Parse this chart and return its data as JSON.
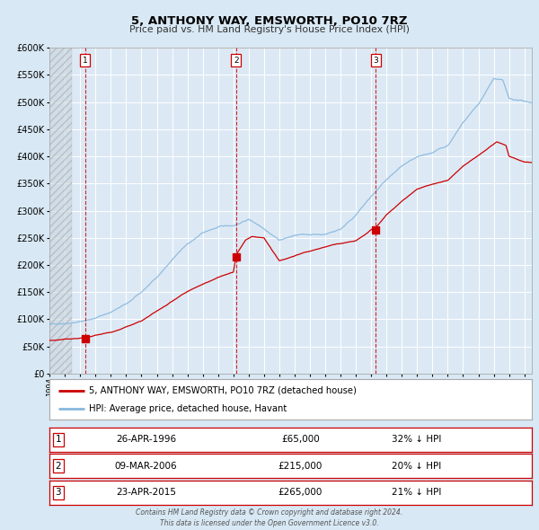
{
  "title": "5, ANTHONY WAY, EMSWORTH, PO10 7RZ",
  "subtitle": "Price paid vs. HM Land Registry's House Price Index (HPI)",
  "bg_color": "#d8e8f4",
  "plot_bg_color": "#dce9f5",
  "grid_color": "#c8d8e8",
  "ylim": [
    0,
    600000
  ],
  "yticks": [
    0,
    50000,
    100000,
    150000,
    200000,
    250000,
    300000,
    350000,
    400000,
    450000,
    500000,
    550000,
    600000
  ],
  "xlim_start": 1994.0,
  "xlim_end": 2025.5,
  "sale_dates": [
    1996.32,
    2006.18,
    2015.31
  ],
  "sale_prices": [
    65000,
    215000,
    265000
  ],
  "sale_labels": [
    "1",
    "2",
    "3"
  ],
  "vline_color": "#cc0000",
  "marker_color": "#cc0000",
  "hpi_line_color": "#88b8dd",
  "price_line_color": "#cc0000",
  "footer_text": "Contains HM Land Registry data © Crown copyright and database right 2024.\nThis data is licensed under the Open Government Licence v3.0.",
  "legend_line1": "5, ANTHONY WAY, EMSWORTH, PO10 7RZ (detached house)",
  "legend_line2": "HPI: Average price, detached house, Havant",
  "table_rows": [
    [
      "1",
      "26-APR-1996",
      "£65,000",
      "32% ↓ HPI"
    ],
    [
      "2",
      "09-MAR-2006",
      "£215,000",
      "20% ↓ HPI"
    ],
    [
      "3",
      "23-APR-2015",
      "£265,000",
      "21% ↓ HPI"
    ]
  ],
  "hatch_end": 1995.45
}
